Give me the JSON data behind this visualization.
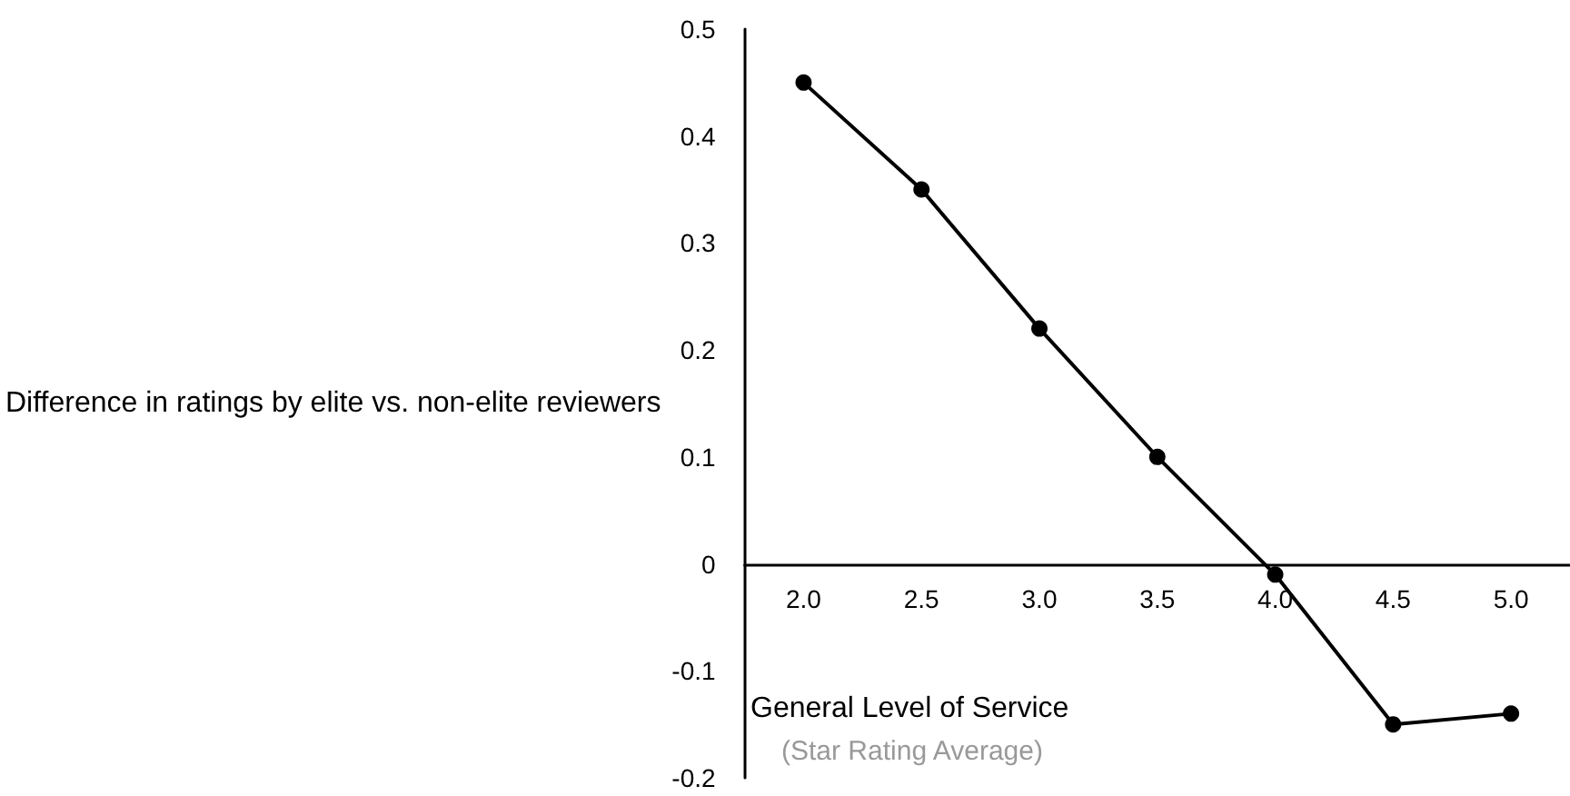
{
  "chart_data": {
    "type": "line",
    "xlabel": "General Level of Service",
    "ylabel": "Difference in ratings by elite vs. non-elite reviewers",
    "annotations": [
      "(Star Rating Average)"
    ],
    "categories": [
      "2.0",
      "2.5",
      "3.0",
      "3.5",
      "4.0",
      "4.5",
      "5.0"
    ],
    "series": [
      {
        "color": "#000000",
        "values": [
          0.45,
          0.35,
          0.22,
          0.1,
          -0.01,
          -0.15,
          -0.14
        ]
      }
    ],
    "ylim": [
      -0.2,
      0.5
    ],
    "yticks": [
      -0.2,
      -0.1,
      0,
      0.1,
      0.2,
      0.3,
      0.4,
      0.5
    ],
    "marker": "circle",
    "line_style": "solid"
  }
}
